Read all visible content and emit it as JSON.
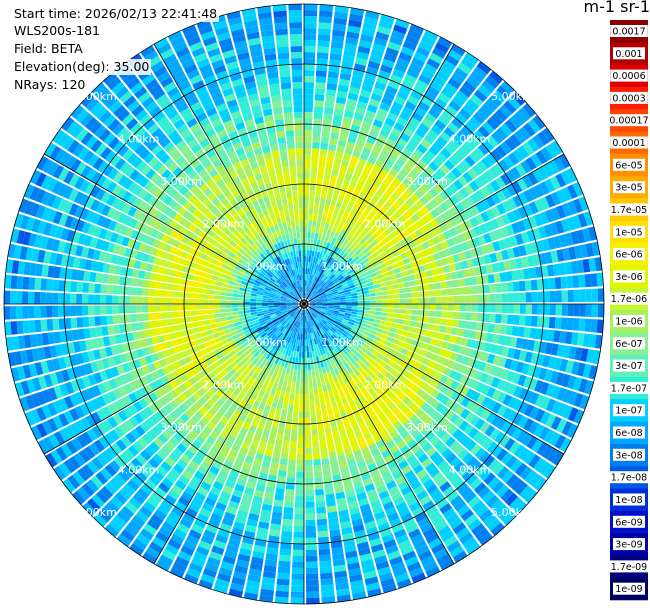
{
  "info": {
    "start_time": "Start time: 2026/02/13 22:41:48",
    "instrument": "WLS200s-181",
    "field": "Field: BETA",
    "elevation": "Elevation(deg): 35.00",
    "nrays": "NRays: 120"
  },
  "colorbar_title": "m-1 sr-1",
  "chart_data": {
    "type": "heatmap",
    "projection": "polar PPI",
    "field": "BETA",
    "elevation_deg": 35.0,
    "n_rays": 120,
    "max_range_km": 5.0,
    "range_rings_km": [
      1,
      2,
      3,
      4,
      5
    ],
    "ring_labels": [
      "1.00km",
      "2.00km",
      "3.00km",
      "4.00km",
      "5.00km"
    ],
    "colorbar_ticks": [
      "0.0017",
      "0.001",
      "0.0006",
      "0.0003",
      "0.00017",
      "0.0001",
      "6e-05",
      "3e-05",
      "1.7e-05",
      "1e-05",
      "6e-06",
      "3e-06",
      "1.7e-06",
      "1e-06",
      "6e-07",
      "3e-07",
      "1.7e-07",
      "1e-07",
      "6e-08",
      "3e-08",
      "1.7e-08",
      "1e-08",
      "6e-09",
      "3e-09",
      "1.7e-09",
      "1e-09"
    ],
    "colorbar_colors": [
      "#8b0000",
      "#b00000",
      "#dd0000",
      "#ff1a00",
      "#ff4400",
      "#ff6a00",
      "#ff9000",
      "#ffab00",
      "#ffc800",
      "#ffe000",
      "#f4f000",
      "#e0f500",
      "#c8f532",
      "#a8f060",
      "#88f090",
      "#60f0b8",
      "#30ecd8",
      "#00d0ff",
      "#00a8ff",
      "#0080f0",
      "#0058e6",
      "#0030dc",
      "#0010c8",
      "#0000a8",
      "#000080",
      "#000060"
    ]
  }
}
